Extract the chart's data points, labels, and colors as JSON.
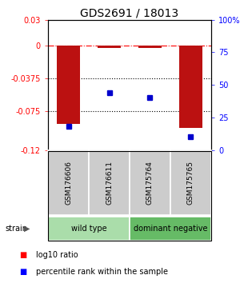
{
  "title": "GDS2691 / 18013",
  "samples": [
    "GSM176606",
    "GSM176611",
    "GSM175764",
    "GSM175765"
  ],
  "log10_ratio": [
    -0.09,
    -0.002,
    -0.002,
    -0.095
  ],
  "percentile_rank": [
    18,
    44,
    40,
    10
  ],
  "ylim_left": [
    -0.12,
    0.03
  ],
  "ylim_right": [
    0,
    100
  ],
  "yticks_left": [
    0.03,
    0,
    -0.0375,
    -0.075,
    -0.12
  ],
  "ytick_labels_left": [
    "0.03",
    "0",
    "-0.0375",
    "-0.075",
    "-0.12"
  ],
  "yticks_right": [
    100,
    75,
    50,
    25,
    0
  ],
  "ytick_labels_right": [
    "100%",
    "75",
    "50",
    "25",
    "0"
  ],
  "hlines": [
    0,
    -0.0375,
    -0.075
  ],
  "hlines_styles": [
    "dashdot",
    "dotted",
    "dotted"
  ],
  "hlines_colors": [
    "red",
    "black",
    "black"
  ],
  "bar_color": "#bb1111",
  "dot_color": "#0000cc",
  "bar_width": 0.55,
  "groups": [
    {
      "label": "wild type",
      "indices": [
        0,
        1
      ],
      "color": "#aaddaa"
    },
    {
      "label": "dominant negative",
      "indices": [
        2,
        3
      ],
      "color": "#66bb66"
    }
  ],
  "legend_ratio_label": "log10 ratio",
  "legend_pct_label": "percentile rank within the sample",
  "bg_plot": "#ffffff",
  "bg_sample_label": "#cccccc",
  "title_fontsize": 10,
  "tick_fontsize": 7,
  "sample_label_fontsize": 6.5,
  "group_label_fontsize": 7,
  "legend_fontsize": 7
}
